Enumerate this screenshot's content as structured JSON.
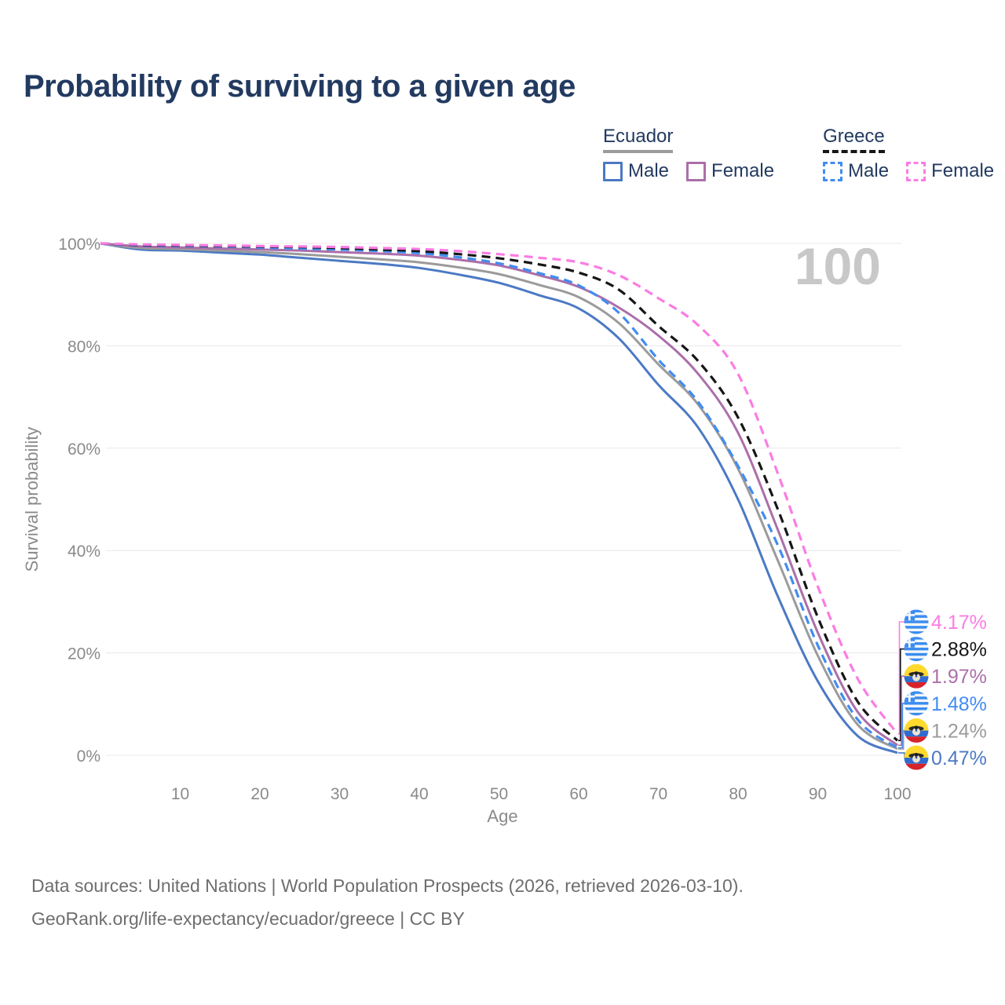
{
  "page": {
    "title": "Probability of surviving to a given age",
    "footer_line1": "Data sources: United Nations | World Population Prospects (2026, retrieved 2026-03-10).",
    "footer_line2": "GeoRank.org/life-expectancy/ecuador/greece | CC BY"
  },
  "colors": {
    "title_text": "#233a60",
    "axis_text": "#8a8a8a",
    "gridline": "#e8e8e8",
    "watermark": "#c8c8c8",
    "background": "#ffffff"
  },
  "legend": {
    "groups": [
      {
        "country": "Ecuador",
        "underline_color": "#9b9b9b",
        "underline_dashed": false,
        "items": [
          {
            "label": "Male",
            "color": "#4b79c4",
            "dashed": false
          },
          {
            "label": "Female",
            "color": "#ab6fa9",
            "dashed": false
          }
        ]
      },
      {
        "country": "Greece",
        "underline_color": "#161616",
        "underline_dashed": true,
        "items": [
          {
            "label": "Male",
            "color": "#418cf0",
            "dashed": true
          },
          {
            "label": "Female",
            "color": "#fb7ce3",
            "dashed": true
          }
        ]
      }
    ]
  },
  "chart_data": {
    "type": "line",
    "title": "Probability of surviving to a given age",
    "xlabel": "Age",
    "ylabel": "Survival probability",
    "xlim": [
      0,
      100
    ],
    "ylim": [
      0,
      100
    ],
    "grid": "horizontal",
    "legend_position": "top-right",
    "hover_age_label": "100",
    "x_ticks": [
      {
        "value": 10,
        "label": "10"
      },
      {
        "value": 20,
        "label": "20"
      },
      {
        "value": 30,
        "label": "30"
      },
      {
        "value": 40,
        "label": "40"
      },
      {
        "value": 50,
        "label": "50"
      },
      {
        "value": 60,
        "label": "60"
      },
      {
        "value": 70,
        "label": "70"
      },
      {
        "value": 80,
        "label": "80"
      },
      {
        "value": 90,
        "label": "90"
      },
      {
        "value": 100,
        "label": "100"
      }
    ],
    "y_ticks": [
      {
        "value": 0,
        "label": "0%"
      },
      {
        "value": 20,
        "label": "20%"
      },
      {
        "value": 40,
        "label": "40%"
      },
      {
        "value": 60,
        "label": "60%"
      },
      {
        "value": 80,
        "label": "80%"
      },
      {
        "value": 100,
        "label": "100%"
      }
    ],
    "ages": [
      0,
      5,
      10,
      15,
      20,
      25,
      30,
      35,
      40,
      45,
      50,
      55,
      60,
      65,
      70,
      75,
      80,
      85,
      90,
      95,
      100
    ],
    "series": [
      {
        "id": "ecuador-male",
        "name": "Ecuador Male",
        "country": "Ecuador",
        "sex": "Male",
        "color": "#4b79c4",
        "dash": "solid",
        "values": [
          100,
          98.8,
          98.6,
          98.2,
          97.8,
          97.2,
          96.6,
          96.0,
          95.2,
          93.9,
          92.3,
          89.9,
          87.3,
          81.5,
          72.4,
          64.0,
          50.0,
          31.0,
          14.5,
          3.8,
          0.47
        ],
        "end_value_label": "0.47%"
      },
      {
        "id": "ecuador-both-sexes",
        "name": "Ecuador (both sexes)",
        "country": "Ecuador",
        "sex": "Both",
        "color": "#9b9b9b",
        "dash": "solid",
        "values": [
          100,
          99.1,
          98.9,
          98.6,
          98.3,
          97.9,
          97.4,
          96.9,
          96.3,
          95.3,
          94.0,
          91.9,
          89.5,
          84.5,
          76.4,
          68.5,
          56.0,
          38.0,
          19.5,
          6.0,
          1.24
        ],
        "end_value_label": "1.24%"
      },
      {
        "id": "ecuador-female",
        "name": "Ecuador Female",
        "country": "Ecuador",
        "sex": "Female",
        "color": "#ab6fa9",
        "dash": "solid",
        "values": [
          100,
          99.4,
          99.2,
          99.0,
          98.8,
          98.6,
          98.3,
          98.0,
          97.6,
          96.8,
          95.7,
          93.8,
          91.5,
          87.5,
          82.0,
          74.5,
          63.0,
          44.0,
          24.0,
          8.5,
          1.97
        ],
        "end_value_label": "1.97%"
      },
      {
        "id": "greece-male",
        "name": "Greece Male",
        "country": "Greece",
        "sex": "Male",
        "color": "#418cf0",
        "dash": "dashed",
        "values": [
          100,
          99.6,
          99.5,
          99.4,
          99.2,
          99.0,
          98.8,
          98.5,
          98.1,
          97.3,
          96.1,
          94.2,
          91.8,
          86.5,
          77.3,
          69.0,
          56.5,
          41.0,
          21.5,
          7.0,
          1.48
        ],
        "end_value_label": "1.48%"
      },
      {
        "id": "greece-both-sexes",
        "name": "Greece (both sexes)",
        "country": "Greece",
        "sex": "Both",
        "color": "#161616",
        "dash": "dashed",
        "values": [
          100,
          99.7,
          99.6,
          99.5,
          99.4,
          99.3,
          99.1,
          98.8,
          98.5,
          97.9,
          97.1,
          95.9,
          94.3,
          91.0,
          83.9,
          77.0,
          66.0,
          48.0,
          27.0,
          10.5,
          2.88
        ],
        "end_value_label": "2.88%"
      },
      {
        "id": "greece-female",
        "name": "Greece Female",
        "country": "Greece",
        "sex": "Female",
        "color": "#fb7ce3",
        "dash": "dashed",
        "values": [
          100,
          99.8,
          99.7,
          99.6,
          99.5,
          99.4,
          99.3,
          99.1,
          98.9,
          98.5,
          97.9,
          97.2,
          96.3,
          93.8,
          89.3,
          84.0,
          74.5,
          55.0,
          33.0,
          15.0,
          4.17
        ],
        "end_value_label": "4.17%"
      }
    ],
    "end_labels": [
      {
        "flag": "greece",
        "value": "4.17%",
        "color": "#fb7ce3",
        "series_index": 5
      },
      {
        "flag": "greece",
        "value": "2.88%",
        "color": "#161616",
        "series_index": 4
      },
      {
        "flag": "ecuador",
        "value": "1.97%",
        "color": "#ab6fa9",
        "series_index": 2
      },
      {
        "flag": "greece",
        "value": "1.48%",
        "color": "#418cf0",
        "series_index": 3
      },
      {
        "flag": "ecuador",
        "value": "1.24%",
        "color": "#9b9b9b",
        "series_index": 1
      },
      {
        "flag": "ecuador",
        "value": "0.47%",
        "color": "#4b79c4",
        "series_index": 0
      }
    ]
  }
}
